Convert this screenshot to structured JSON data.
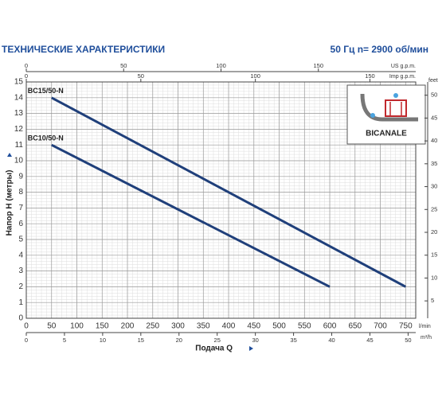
{
  "chart_data": {
    "type": "line",
    "title": "ТЕХНИЧЕСКИЕ ХАРАКТЕРИСТИКИ",
    "subtitle": "50 Гц   n= 2900 об/мин",
    "xlabel": "Подача Q",
    "xunit": "l/min",
    "ylabel": "Напор H (метры)",
    "xlim": [
      0,
      770
    ],
    "xticks": [
      0,
      50,
      100,
      150,
      200,
      250,
      300,
      350,
      400,
      450,
      500,
      550,
      600,
      650,
      700,
      750
    ],
    "ylim": [
      0,
      15
    ],
    "yticks": [
      0,
      1,
      2,
      3,
      4,
      5,
      6,
      7,
      8,
      9,
      10,
      11,
      12,
      13,
      14,
      15
    ],
    "y2unit": "feet",
    "y2lim": [
      1.2,
      52.9
    ],
    "y2ticks": [
      5,
      10,
      15,
      20,
      25,
      30,
      35,
      40,
      45,
      50
    ],
    "top_axes": [
      {
        "unit": "US g.p.m.",
        "lim": [
          0,
          200
        ],
        "ticks": [
          0,
          50,
          100,
          150
        ]
      },
      {
        "unit": "Imp g.p.m.",
        "lim": [
          0,
          170
        ],
        "ticks": [
          0,
          50,
          100,
          150
        ]
      }
    ],
    "bottom_axis2": {
      "unit": "m³/h",
      "lim": [
        0,
        51
      ],
      "ticks": [
        0,
        5,
        10,
        15,
        20,
        25,
        30,
        35,
        40,
        45,
        50
      ]
    },
    "grid": true,
    "series": [
      {
        "name": "BC15/50-N",
        "color": "#1f3f7a",
        "x": [
          50,
          750
        ],
        "values": [
          14,
          2
        ]
      },
      {
        "name": "BC10/50-N",
        "color": "#1f3f7a",
        "x": [
          50,
          600
        ],
        "values": [
          11,
          2
        ]
      }
    ],
    "inset_label": "BICANALE"
  }
}
